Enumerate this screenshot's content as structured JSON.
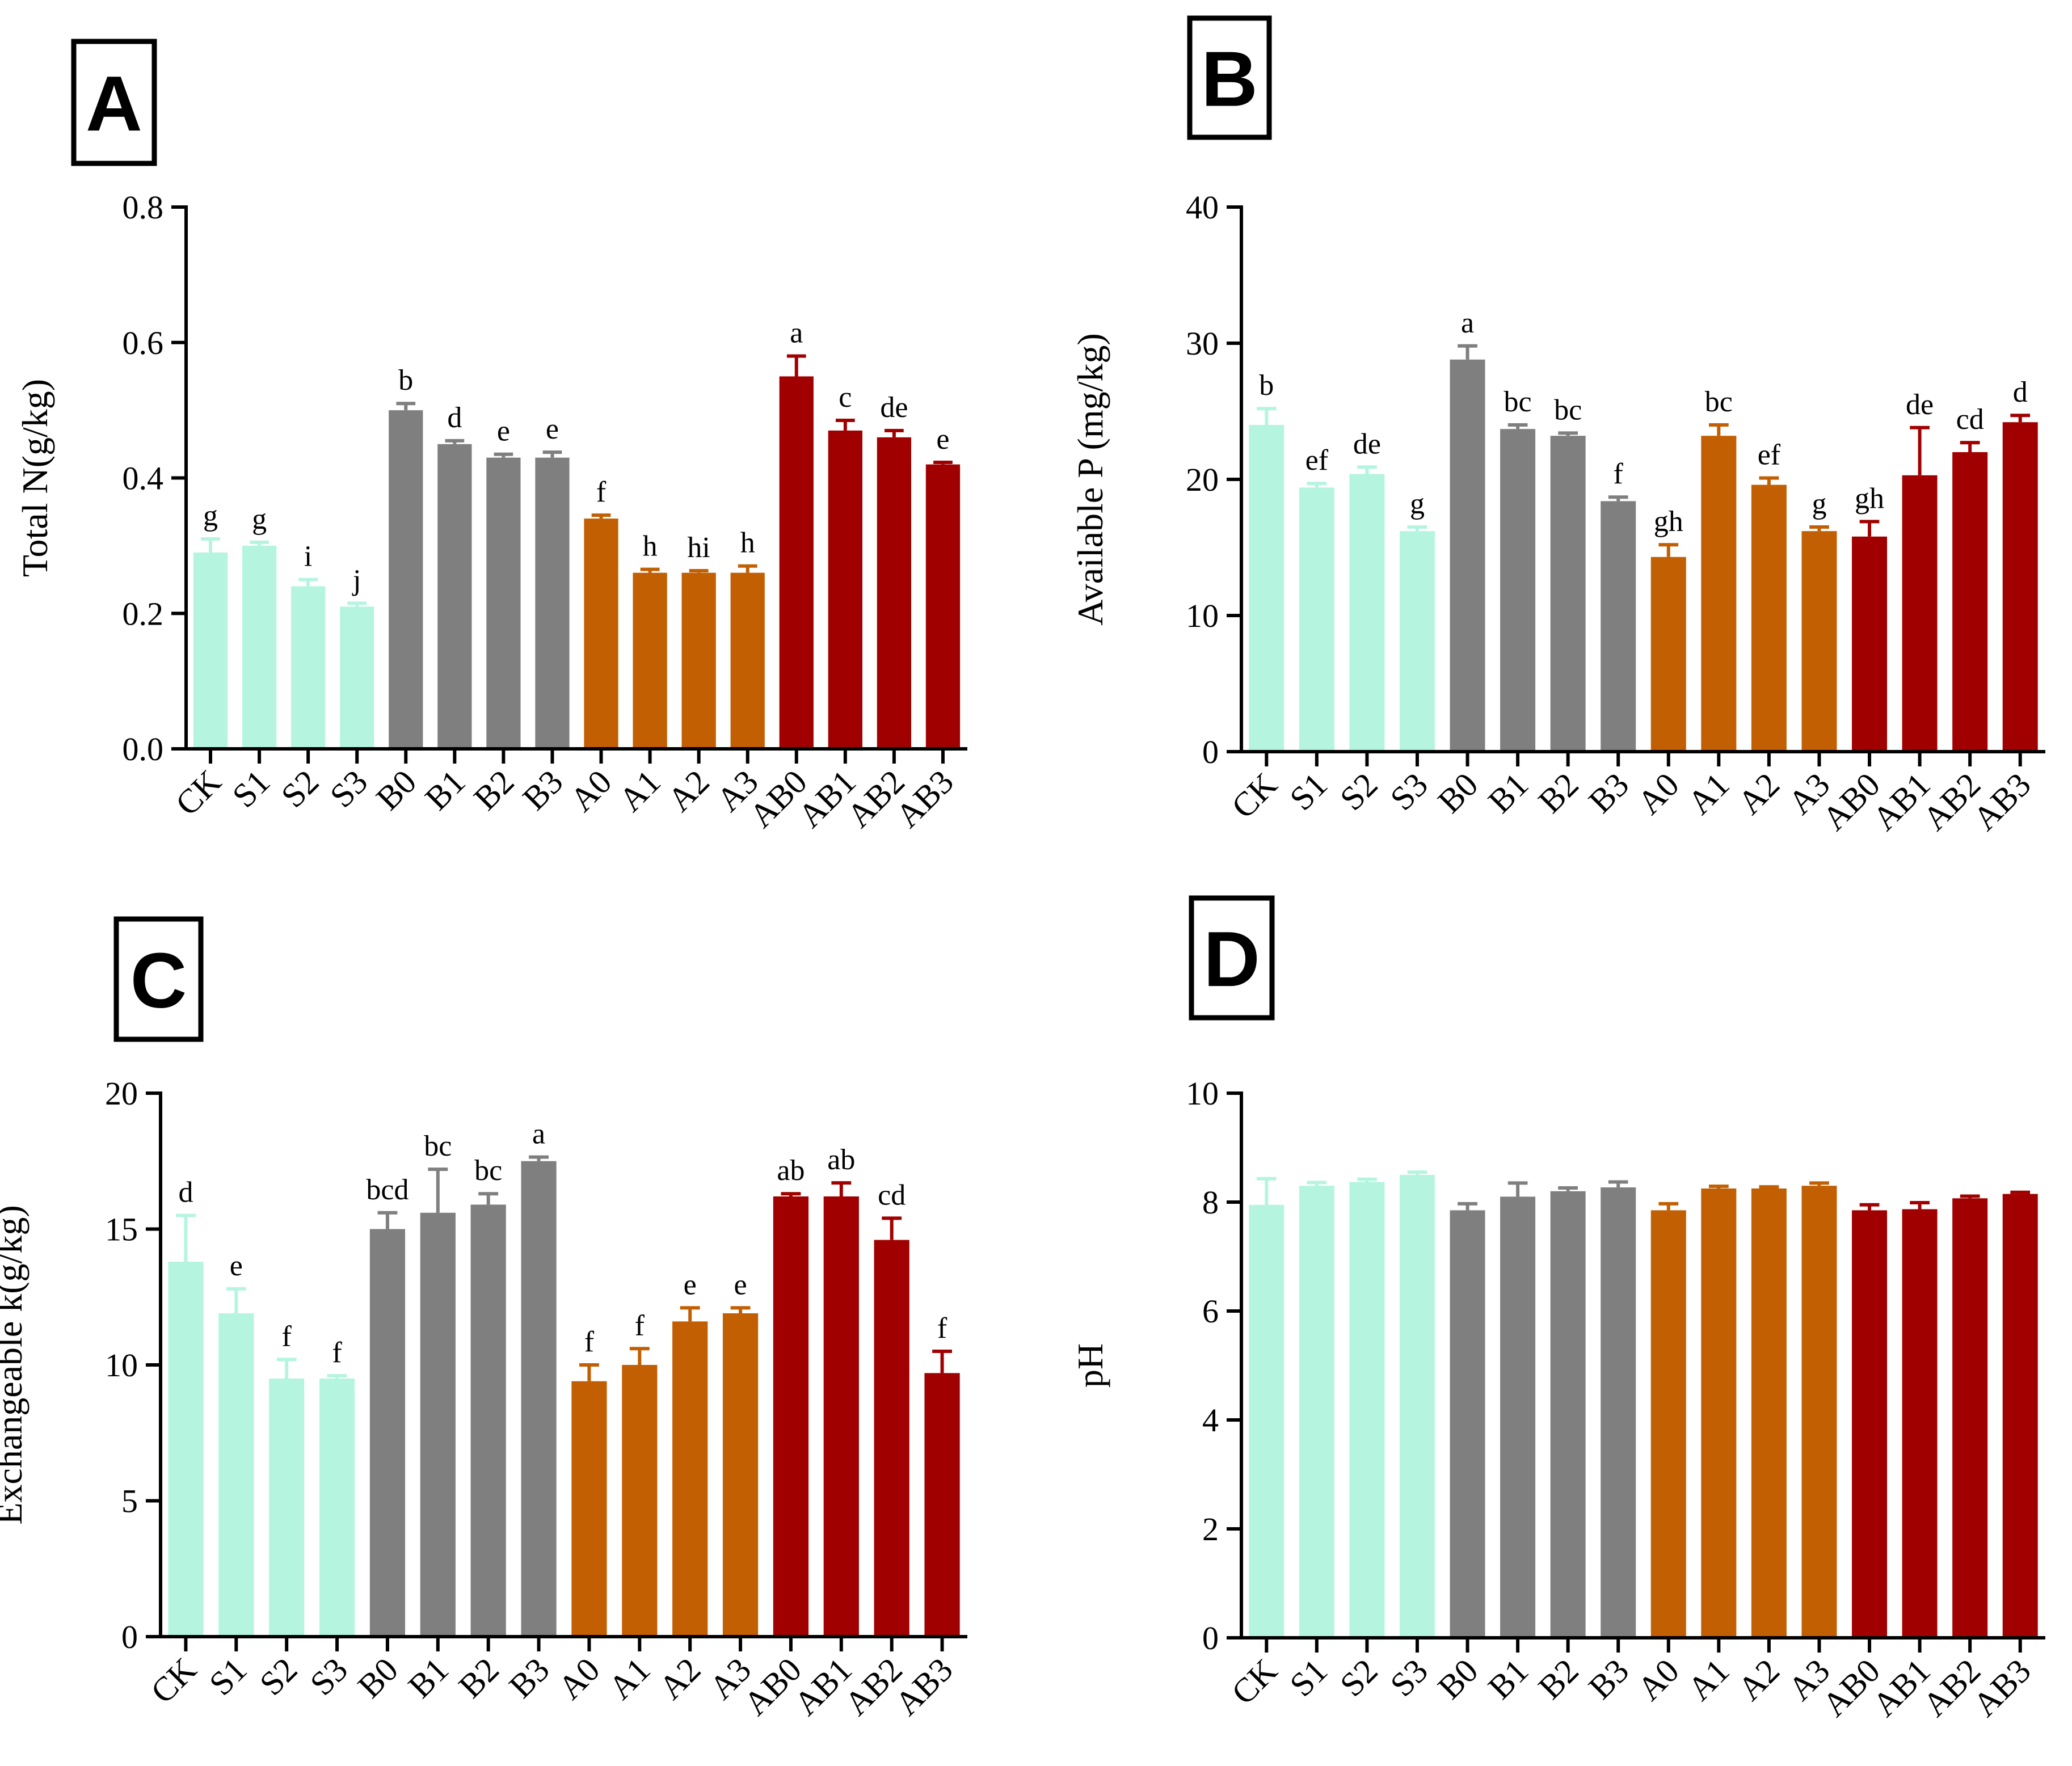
{
  "colors": {
    "S": "#b5f5e0",
    "B": "#7f7f7f",
    "A": "#c15f02",
    "AB": "#a10000"
  },
  "chart_data": [
    {
      "type": "bar",
      "panel": "A",
      "ylabel": "Total N(g/kg)",
      "ylim": [
        0,
        0.8
      ],
      "yticks": [
        "0.0",
        "0.2",
        "0.4",
        "0.6",
        "0.8"
      ],
      "categories": [
        "CK",
        "S1",
        "S2",
        "S3",
        "B0",
        "B1",
        "B2",
        "B3",
        "A0",
        "A1",
        "A2",
        "A3",
        "AB0",
        "AB1",
        "AB2",
        "AB3"
      ],
      "groups": [
        "S",
        "S",
        "S",
        "S",
        "B",
        "B",
        "B",
        "B",
        "A",
        "A",
        "A",
        "A",
        "AB",
        "AB",
        "AB",
        "AB"
      ],
      "values": [
        0.29,
        0.3,
        0.24,
        0.21,
        0.5,
        0.45,
        0.43,
        0.43,
        0.34,
        0.26,
        0.26,
        0.26,
        0.55,
        0.47,
        0.46,
        0.42
      ],
      "errors": [
        0.02,
        0.005,
        0.01,
        0.005,
        0.01,
        0.005,
        0.005,
        0.008,
        0.005,
        0.005,
        0.003,
        0.01,
        0.03,
        0.015,
        0.01,
        0.003
      ],
      "letters": [
        "g",
        "g",
        "i",
        "j",
        "b",
        "d",
        "e",
        "e",
        "f",
        "h",
        "hi",
        "h",
        "a",
        "c",
        "de",
        "e"
      ]
    },
    {
      "type": "bar",
      "panel": "B",
      "ylabel": "Available P (mg/kg)",
      "ylim": [
        0,
        40
      ],
      "yticks": [
        "0",
        "10",
        "20",
        "30",
        "40"
      ],
      "categories": [
        "CK",
        "S1",
        "S2",
        "S3",
        "B0",
        "B1",
        "B2",
        "B3",
        "A0",
        "A1",
        "A2",
        "A3",
        "AB0",
        "AB1",
        "AB2",
        "AB3"
      ],
      "groups": [
        "S",
        "S",
        "S",
        "S",
        "B",
        "B",
        "B",
        "B",
        "A",
        "A",
        "A",
        "A",
        "AB",
        "AB",
        "AB",
        "AB"
      ],
      "values": [
        24.0,
        19.4,
        20.4,
        16.2,
        28.8,
        23.7,
        23.2,
        18.4,
        14.3,
        23.2,
        19.6,
        16.2,
        15.8,
        20.3,
        22.0,
        24.2
      ],
      "errors": [
        1.2,
        0.3,
        0.5,
        0.3,
        1.0,
        0.3,
        0.2,
        0.3,
        0.9,
        0.8,
        0.5,
        0.3,
        1.1,
        3.5,
        0.7,
        0.5
      ],
      "letters": [
        "b",
        "ef",
        "de",
        "g",
        "a",
        "bc",
        "bc",
        "f",
        "gh",
        "bc",
        "ef",
        "g",
        "gh",
        "de",
        "cd",
        "d"
      ]
    },
    {
      "type": "bar",
      "panel": "C",
      "ylabel": "Exchangeable k(g/kg)",
      "ylim": [
        0,
        20
      ],
      "yticks": [
        "0",
        "5",
        "10",
        "15",
        "20"
      ],
      "categories": [
        "CK",
        "S1",
        "S2",
        "S3",
        "B0",
        "B1",
        "B2",
        "B3",
        "A0",
        "A1",
        "A2",
        "A3",
        "AB0",
        "AB1",
        "AB2",
        "AB3"
      ],
      "groups": [
        "S",
        "S",
        "S",
        "S",
        "B",
        "B",
        "B",
        "B",
        "A",
        "A",
        "A",
        "A",
        "AB",
        "AB",
        "AB",
        "AB"
      ],
      "values": [
        13.8,
        11.9,
        9.5,
        9.5,
        15.0,
        15.6,
        15.9,
        17.5,
        9.4,
        10.0,
        11.6,
        11.9,
        16.2,
        16.2,
        14.6,
        9.7
      ],
      "errors": [
        1.7,
        0.9,
        0.7,
        0.1,
        0.6,
        1.6,
        0.4,
        0.15,
        0.6,
        0.6,
        0.5,
        0.2,
        0.1,
        0.5,
        0.8,
        0.8
      ],
      "letters": [
        "d",
        "e",
        "f",
        "f",
        "bcd",
        "bc",
        "bc",
        "a",
        "f",
        "f",
        "e",
        "e",
        "ab",
        "ab",
        "cd",
        "f"
      ]
    },
    {
      "type": "bar",
      "panel": "D",
      "ylabel": "pH",
      "ylim": [
        0,
        10
      ],
      "yticks": [
        "0",
        "2",
        "4",
        "6",
        "8",
        "10"
      ],
      "categories": [
        "CK",
        "S1",
        "S2",
        "S3",
        "B0",
        "B1",
        "B2",
        "B3",
        "A0",
        "A1",
        "A2",
        "A3",
        "AB0",
        "AB1",
        "AB2",
        "AB3"
      ],
      "groups": [
        "S",
        "S",
        "S",
        "S",
        "B",
        "B",
        "B",
        "B",
        "A",
        "A",
        "A",
        "A",
        "AB",
        "AB",
        "AB",
        "AB"
      ],
      "values": [
        7.95,
        8.3,
        8.37,
        8.5,
        7.85,
        8.1,
        8.2,
        8.27,
        7.85,
        8.25,
        8.25,
        8.3,
        7.85,
        7.87,
        8.07,
        8.15
      ],
      "errors": [
        0.48,
        0.06,
        0.05,
        0.05,
        0.12,
        0.25,
        0.06,
        0.1,
        0.12,
        0.04,
        0.03,
        0.05,
        0.1,
        0.12,
        0.04,
        0.03
      ],
      "letters": []
    }
  ]
}
